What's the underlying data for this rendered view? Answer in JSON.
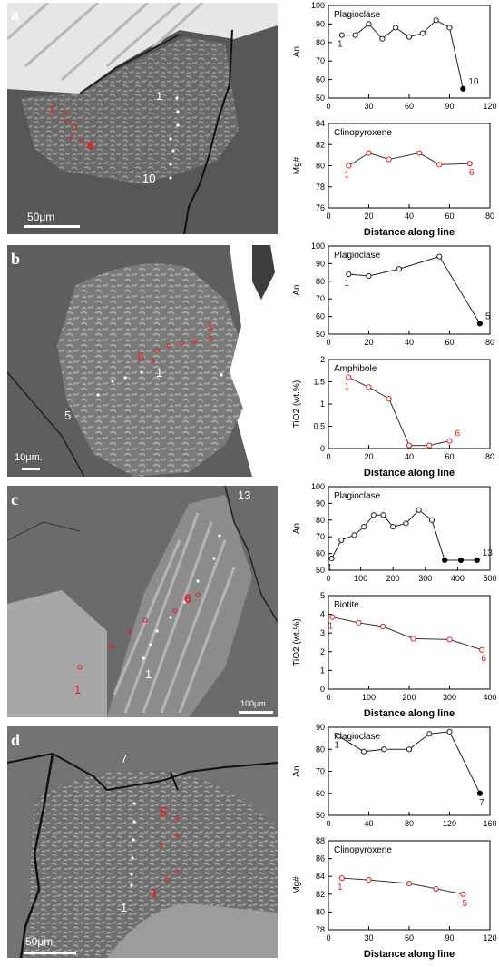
{
  "panels": [
    {
      "letter": "a",
      "scale_bar": "50μm",
      "image_labels": [
        {
          "text": "1",
          "color": "#ffffff"
        },
        {
          "text": "10",
          "color": "#ffffff"
        },
        {
          "text": "1",
          "color": "#e02020"
        },
        {
          "text": "6",
          "color": "#e02020"
        }
      ]
    },
    {
      "letter": "b",
      "scale_bar": "10μm.",
      "image_labels": [
        {
          "text": "1",
          "color": "#ffffff"
        },
        {
          "text": "5",
          "color": "#ffffff"
        },
        {
          "text": "1",
          "color": "#e02020"
        },
        {
          "text": "6",
          "color": "#e02020"
        }
      ]
    },
    {
      "letter": "c",
      "scale_bar": "100μm",
      "image_labels": [
        {
          "text": "13",
          "color": "#ffffff"
        },
        {
          "text": "1",
          "color": "#ffffff"
        },
        {
          "text": "6",
          "color": "#e02020"
        },
        {
          "text": "1",
          "color": "#e02020"
        }
      ]
    },
    {
      "letter": "d",
      "scale_bar": "50μm",
      "image_labels": [
        {
          "text": "7",
          "color": "#ffffff"
        },
        {
          "text": "1",
          "color": "#ffffff"
        },
        {
          "text": "5",
          "color": "#e02020"
        },
        {
          "text": "1",
          "color": "#e02020"
        }
      ]
    }
  ],
  "chart_data": [
    {
      "type": "line",
      "title": "Plagioclase",
      "ylabel": "An",
      "xlabel": "",
      "xlim": [
        0,
        120
      ],
      "ylim": [
        50,
        100
      ],
      "xticks": [
        0,
        30,
        60,
        90,
        120
      ],
      "yticks": [
        50,
        60,
        70,
        80,
        90,
        100
      ],
      "line_color": "#222222",
      "x": [
        10,
        20,
        30,
        40,
        50,
        60,
        70,
        80,
        90,
        100
      ],
      "y": [
        84,
        84,
        90,
        82,
        88,
        83,
        85,
        92,
        88,
        55
      ],
      "filled": [
        false,
        false,
        false,
        false,
        false,
        false,
        false,
        false,
        false,
        true
      ],
      "point_color": "#222222",
      "end_labels": [
        "1",
        "10"
      ],
      "label_color": "#222222"
    },
    {
      "type": "line",
      "title": "Clinopyroxene",
      "ylabel": "Mg#",
      "xlabel": "Distance along line",
      "xlim": [
        0,
        80
      ],
      "ylim": [
        76,
        84
      ],
      "xticks": [
        0,
        20,
        40,
        60,
        80
      ],
      "yticks": [
        76,
        78,
        80,
        82,
        84
      ],
      "line_color": "#333333",
      "x": [
        10,
        20,
        30,
        45,
        55,
        70
      ],
      "y": [
        80.0,
        81.2,
        80.6,
        81.2,
        80.1,
        80.2
      ],
      "filled": [
        false,
        false,
        false,
        false,
        false,
        false
      ],
      "point_color": "#e02020",
      "end_labels": [
        "1",
        "6"
      ],
      "label_color": "#e02020"
    },
    {
      "type": "line",
      "title": "Plagioclase",
      "ylabel": "An",
      "xlabel": "",
      "xlim": [
        0,
        80
      ],
      "ylim": [
        50,
        100
      ],
      "xticks": [
        0,
        20,
        40,
        60,
        80
      ],
      "yticks": [
        50,
        60,
        70,
        80,
        90,
        100
      ],
      "line_color": "#222222",
      "x": [
        10,
        20,
        35,
        55,
        75
      ],
      "y": [
        84,
        83,
        87,
        94,
        56
      ],
      "filled": [
        false,
        false,
        false,
        false,
        true
      ],
      "point_color": "#222222",
      "end_labels": [
        "1",
        "5"
      ],
      "label_color": "#222222"
    },
    {
      "type": "line",
      "title": "Amphibole",
      "ylabel": "TiO2 (wt.%)",
      "xlabel": "Distance along line",
      "xlim": [
        0,
        80
      ],
      "ylim": [
        0,
        2
      ],
      "xticks": [
        0,
        20,
        40,
        60,
        80
      ],
      "yticks": [
        0,
        0.5,
        1,
        1.5,
        2
      ],
      "line_color": "#333333",
      "x": [
        10,
        20,
        30,
        40,
        50,
        60
      ],
      "y": [
        1.6,
        1.38,
        1.12,
        0.07,
        0.07,
        0.17
      ],
      "filled": [
        false,
        false,
        false,
        false,
        false,
        false
      ],
      "point_color": "#e02020",
      "end_labels": [
        "1",
        "6"
      ],
      "label_color": "#e02020"
    },
    {
      "type": "line",
      "title": "Plagioclase",
      "ylabel": "An",
      "xlabel": "",
      "xlim": [
        0,
        500
      ],
      "ylim": [
        50,
        100
      ],
      "xticks": [
        0,
        100,
        200,
        300,
        400,
        500
      ],
      "yticks": [
        50,
        60,
        70,
        80,
        90,
        100
      ],
      "line_color": "#222222",
      "x": [
        10,
        40,
        80,
        110,
        140,
        170,
        200,
        240,
        280,
        320,
        360,
        410,
        460
      ],
      "y": [
        57,
        68,
        71,
        76,
        83,
        83,
        76,
        78,
        86,
        80,
        56,
        56,
        56
      ],
      "filled": [
        false,
        false,
        false,
        false,
        false,
        false,
        false,
        false,
        false,
        false,
        true,
        true,
        true
      ],
      "point_color": "#222222",
      "end_labels": [
        "1",
        "13"
      ],
      "label_color": "#222222"
    },
    {
      "type": "line",
      "title": "Biotite",
      "ylabel": "TiO2 (wt.%)",
      "xlabel": "Distance along line",
      "xlim": [
        0,
        400
      ],
      "ylim": [
        0,
        5
      ],
      "xticks": [
        0,
        100,
        200,
        300,
        400
      ],
      "yticks": [
        0,
        1,
        2,
        3,
        4,
        5
      ],
      "line_color": "#333333",
      "x": [
        10,
        75,
        135,
        210,
        300,
        380
      ],
      "y": [
        3.85,
        3.55,
        3.35,
        2.7,
        2.65,
        2.1
      ],
      "filled": [
        false,
        false,
        false,
        false,
        false,
        false
      ],
      "point_color": "#e02020",
      "end_labels": [
        "1",
        "6"
      ],
      "label_color": "#e02020"
    },
    {
      "type": "line",
      "title": "Plagioclase",
      "ylabel": "An",
      "xlabel": "",
      "xlim": [
        0,
        160
      ],
      "ylim": [
        50,
        90
      ],
      "xticks": [
        0,
        40,
        80,
        120,
        160
      ],
      "yticks": [
        50,
        60,
        70,
        80,
        90
      ],
      "line_color": "#222222",
      "x": [
        10,
        35,
        55,
        80,
        100,
        120,
        150
      ],
      "y": [
        86,
        79,
        80,
        80,
        87,
        88,
        60
      ],
      "filled": [
        false,
        false,
        false,
        false,
        false,
        false,
        true
      ],
      "point_color": "#222222",
      "end_labels": [
        "1",
        "7"
      ],
      "label_color": "#222222"
    },
    {
      "type": "line",
      "title": "Clinopyroxene",
      "ylabel": "Mg#",
      "xlabel": "Distance along line",
      "xlim": [
        0,
        120
      ],
      "ylim": [
        78,
        88
      ],
      "xticks": [
        0,
        30,
        60,
        90,
        120
      ],
      "yticks": [
        78,
        80,
        82,
        84,
        86,
        88
      ],
      "line_color": "#333333",
      "x": [
        10,
        30,
        60,
        80,
        100
      ],
      "y": [
        83.8,
        83.6,
        83.2,
        82.6,
        82.0
      ],
      "filled": [
        false,
        false,
        false,
        false,
        false
      ],
      "point_color": "#e02020",
      "end_labels": [
        "1",
        "5"
      ],
      "label_color": "#e02020"
    }
  ]
}
